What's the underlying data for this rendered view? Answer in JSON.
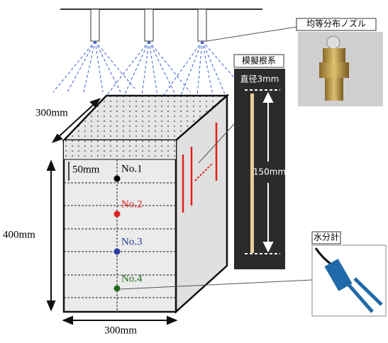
{
  "nozzle_label": "均等分布ノズル",
  "root_label": "模擬根系",
  "root_diameter": "直径3mm",
  "root_length": "150mm",
  "dims": {
    "depth": "300mm",
    "width": "300mm",
    "height": "400mm",
    "spacing": "50mm"
  },
  "sensors": [
    {
      "label": "No.1",
      "color": "#000000"
    },
    {
      "label": "No.2",
      "color": "#e0201c"
    },
    {
      "label": "No.3",
      "color": "#2a3ca0"
    },
    {
      "label": "No.4",
      "color": "#1f6b1f"
    }
  ],
  "sensor_label": "水分計"
}
